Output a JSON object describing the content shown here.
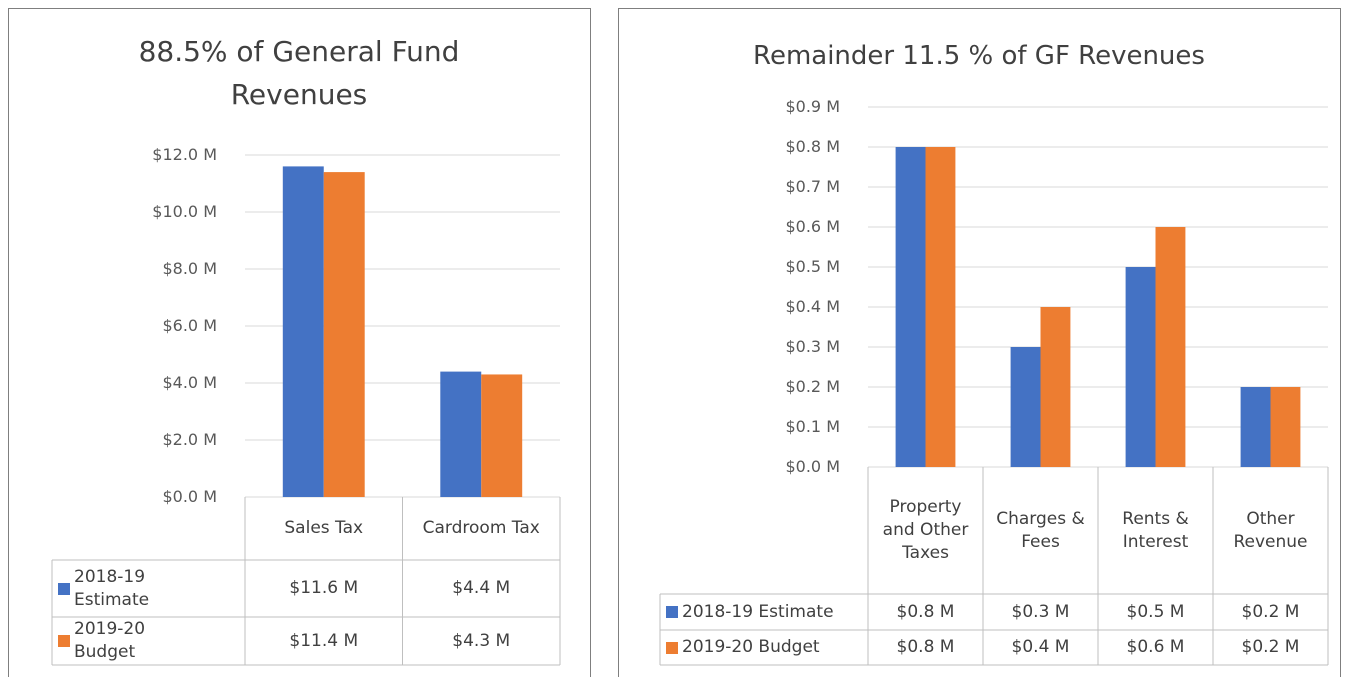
{
  "chart_data": [
    {
      "type": "bar",
      "title": "88.5% of General Fund Revenues",
      "categories": [
        "Sales Tax",
        "Cardroom Tax"
      ],
      "series": [
        {
          "name": "2018-19 Estimate",
          "color": "#4472c4",
          "values": [
            11.6,
            4.4
          ],
          "value_labels": [
            "$11.6 M",
            "$4.4 M"
          ]
        },
        {
          "name": "2019-20 Budget",
          "color": "#ed7d31",
          "values": [
            11.4,
            4.3
          ],
          "value_labels": [
            "$11.4 M",
            "$4.3 M"
          ]
        }
      ],
      "ylim": [
        0,
        12
      ],
      "yticks": [
        {
          "value": 0,
          "label": "$0.0 M"
        },
        {
          "value": 2,
          "label": "$2.0 M"
        },
        {
          "value": 4,
          "label": "$4.0 M"
        },
        {
          "value": 6,
          "label": "$6.0 M"
        },
        {
          "value": 8,
          "label": "$8.0 M"
        },
        {
          "value": 10,
          "label": "$10.0 M"
        },
        {
          "value": 12,
          "label": "$12.0 M"
        }
      ],
      "grid": true
    },
    {
      "type": "bar",
      "title": "Remainder 11.5 % of GF Revenues",
      "categories": [
        "Property and Other Taxes",
        "Charges & Fees",
        "Rents & Interest",
        "Other Revenue"
      ],
      "series": [
        {
          "name": "2018-19 Estimate",
          "color": "#4472c4",
          "values": [
            0.8,
            0.3,
            0.5,
            0.2
          ],
          "value_labels": [
            "$0.8 M",
            "$0.3 M",
            "$0.5 M",
            "$0.2 M"
          ]
        },
        {
          "name": "2019-20 Budget",
          "color": "#ed7d31",
          "values": [
            0.8,
            0.4,
            0.6,
            0.2
          ],
          "value_labels": [
            "$0.8 M",
            "$0.4 M",
            "$0.6 M",
            "$0.2 M"
          ]
        }
      ],
      "ylim": [
        0,
        0.9
      ],
      "yticks": [
        {
          "value": 0,
          "label": "$0.0 M"
        },
        {
          "value": 0.1,
          "label": "$0.1 M"
        },
        {
          "value": 0.2,
          "label": "$0.2 M"
        },
        {
          "value": 0.3,
          "label": "$0.3 M"
        },
        {
          "value": 0.4,
          "label": "$0.4 M"
        },
        {
          "value": 0.5,
          "label": "$0.5 M"
        },
        {
          "value": 0.6,
          "label": "$0.6 M"
        },
        {
          "value": 0.7,
          "label": "$0.7 M"
        },
        {
          "value": 0.8,
          "label": "$0.8 M"
        },
        {
          "value": 0.9,
          "label": "$0.9 M"
        }
      ],
      "grid": true
    }
  ]
}
